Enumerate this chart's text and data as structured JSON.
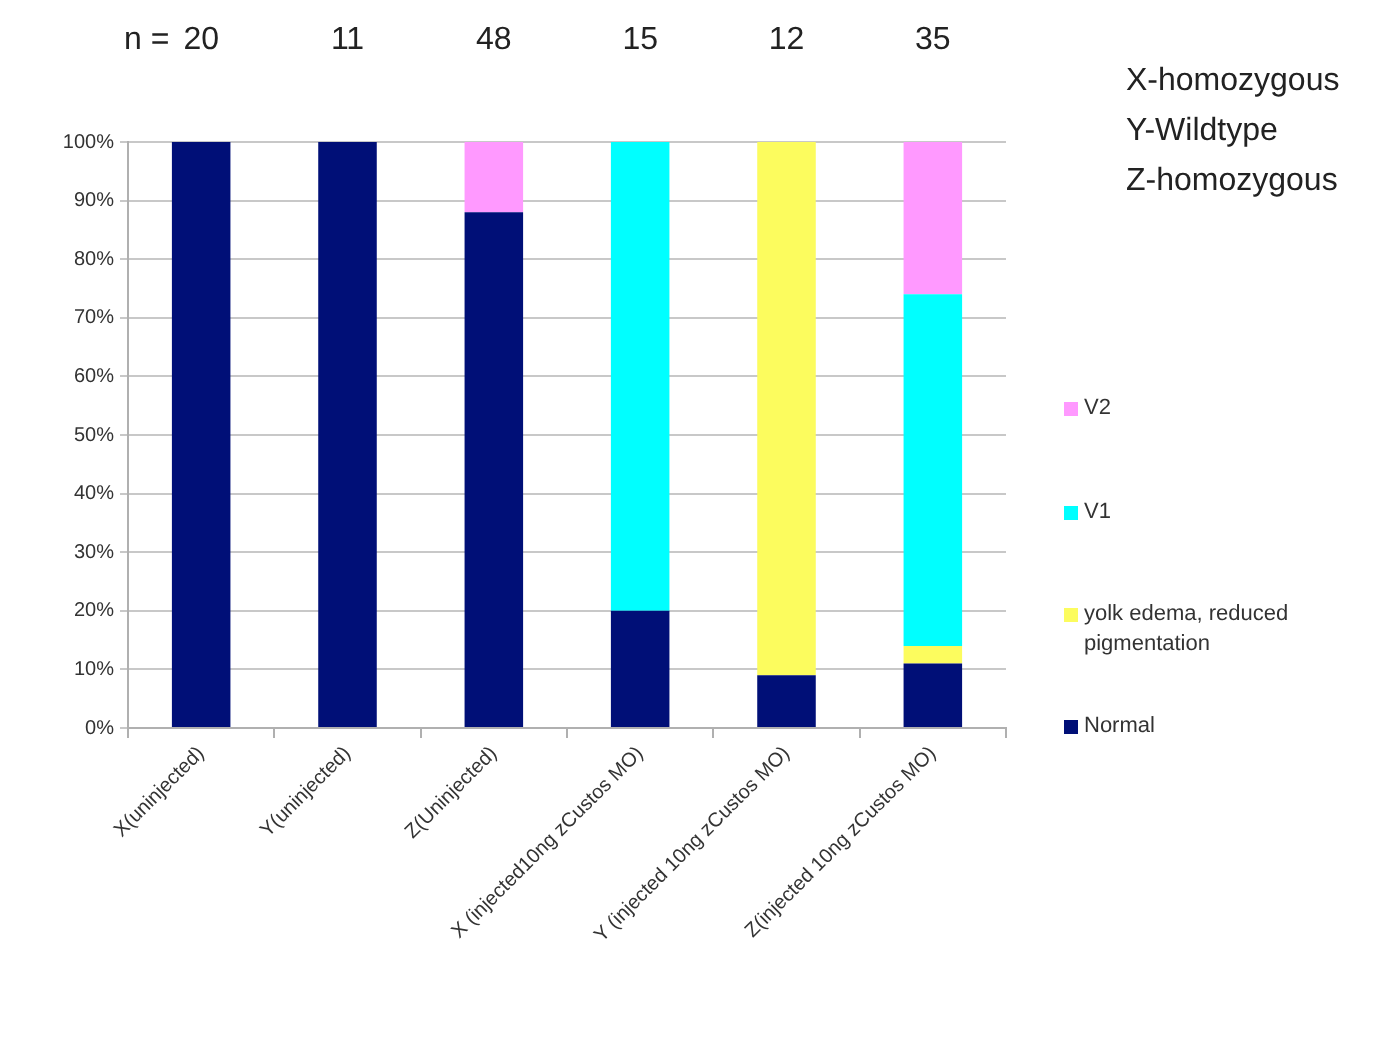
{
  "chart_data": {
    "type": "bar",
    "stacked": true,
    "categories": [
      "X(uninjected)",
      "Y(uninjected)",
      "Z(Uninjected)",
      "X (injected10ng zCustos MO)",
      "Y (injected 10ng zCustos MO)",
      "Z(injected 10ng zCustos MO)"
    ],
    "series": [
      {
        "name": "Normal",
        "color": "#000f77",
        "values": [
          100,
          100,
          88,
          20,
          9,
          11
        ]
      },
      {
        "name": "yolk edema, reduced pigmentation",
        "color": "#fcfc5e",
        "values": [
          0,
          0,
          0,
          0,
          91,
          3
        ]
      },
      {
        "name": "V1",
        "color": "#00ffff",
        "values": [
          0,
          0,
          0,
          80,
          0,
          60
        ]
      },
      {
        "name": "V2",
        "color": "#ff99ff",
        "values": [
          0,
          0,
          12,
          0,
          0,
          26
        ]
      }
    ],
    "ylim": [
      0,
      100
    ],
    "yticks": [
      {
        "value": 0,
        "label": "0%"
      },
      {
        "value": 10,
        "label": "10%"
      },
      {
        "value": 20,
        "label": "20%"
      },
      {
        "value": 30,
        "label": "30%"
      },
      {
        "value": 40,
        "label": "40%"
      },
      {
        "value": 50,
        "label": "50%"
      },
      {
        "value": 60,
        "label": "60%"
      },
      {
        "value": 70,
        "label": "70%"
      },
      {
        "value": 80,
        "label": "80%"
      },
      {
        "value": 90,
        "label": "90%"
      },
      {
        "value": 100,
        "label": "100%"
      }
    ],
    "grid": "y",
    "legend": "right",
    "annotations": [
      "n =",
      "20",
      "11",
      "48",
      "15",
      "12",
      "35",
      "X-homozygous",
      "Y-Wildtype",
      "Z-homozygous"
    ]
  }
}
